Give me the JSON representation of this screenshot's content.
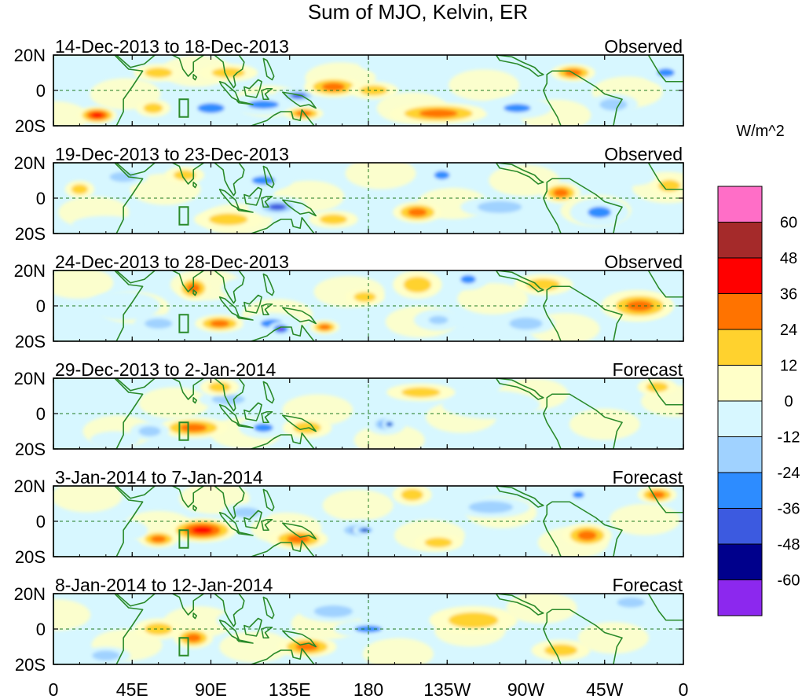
{
  "title": "Sum of MJO, Kelvin, ER",
  "colorbar": {
    "unit": "W/m^2",
    "labels": [
      "60",
      "48",
      "36",
      "24",
      "12",
      "0",
      "-12",
      "-24",
      "-36",
      "-48",
      "-60"
    ],
    "colors": [
      "#ff6ec7",
      "#a52a2a",
      "#ff0000",
      "#ff7300",
      "#ffd22e",
      "#ffffc8",
      "#d7f7ff",
      "#a0d2ff",
      "#2d8cff",
      "#3c5ae0",
      "#00008c",
      "#8c28ee"
    ]
  },
  "axes": {
    "lat_labels": [
      "20N",
      "0",
      "20S"
    ],
    "lon_labels": [
      "0",
      "45E",
      "90E",
      "135E",
      "180",
      "135W",
      "90W",
      "45W",
      "0"
    ]
  },
  "panels": [
    {
      "period": "14-Dec-2013 to 18-Dec-2013",
      "status": "Observed",
      "anomalies": [
        {
          "lon": 25,
          "lat": -14,
          "rlon": 8,
          "rlat": 5,
          "v": 40
        },
        {
          "lon": 57,
          "lat": -10,
          "rlon": 7,
          "rlat": 5,
          "v": 22
        },
        {
          "lon": 90,
          "lat": -10,
          "rlon": 14,
          "rlat": 7,
          "v": -30
        },
        {
          "lon": 120,
          "lat": -8,
          "rlon": 16,
          "rlat": 6,
          "v": -34
        },
        {
          "lon": 140,
          "lat": -3,
          "rlon": 10,
          "rlat": 5,
          "v": -40
        },
        {
          "lon": 160,
          "lat": 2,
          "rlon": 12,
          "rlat": 6,
          "v": 30
        },
        {
          "lon": 183,
          "lat": 0,
          "rlon": 10,
          "rlat": 5,
          "v": 22
        },
        {
          "lon": 143,
          "lat": -13,
          "rlon": 8,
          "rlat": 4,
          "v": 28
        },
        {
          "lon": 220,
          "lat": -13,
          "rlon": 20,
          "rlat": 6,
          "v": 30
        },
        {
          "lon": 265,
          "lat": -10,
          "rlon": 14,
          "rlat": 6,
          "v": -30
        },
        {
          "lon": 297,
          "lat": 10,
          "rlon": 9,
          "rlat": 5,
          "v": 26
        },
        {
          "lon": 350,
          "lat": 10,
          "rlon": 9,
          "rlat": 6,
          "v": -26
        },
        {
          "lon": 200,
          "lat": 15,
          "rlon": 18,
          "rlat": 6,
          "v": -12
        },
        {
          "lon": 60,
          "lat": 10,
          "rlon": 10,
          "rlat": 5,
          "v": 14
        },
        {
          "lon": 320,
          "lat": -8,
          "rlon": 10,
          "rlat": 6,
          "v": -14
        },
        {
          "lon": 100,
          "lat": 10,
          "rlon": 12,
          "rlat": 5,
          "v": 14
        }
      ]
    },
    {
      "period": "19-Dec-2013 to 23-Dec-2013",
      "status": "Observed",
      "anomalies": [
        {
          "lon": 15,
          "lat": 5,
          "rlon": 6,
          "rlat": 5,
          "v": 22
        },
        {
          "lon": 40,
          "lat": 12,
          "rlon": 10,
          "rlat": 5,
          "v": -14
        },
        {
          "lon": 75,
          "lat": 13,
          "rlon": 8,
          "rlat": 5,
          "v": 22
        },
        {
          "lon": 120,
          "lat": 10,
          "rlon": 12,
          "rlat": 6,
          "v": -32
        },
        {
          "lon": 128,
          "lat": -5,
          "rlon": 12,
          "rlat": 6,
          "v": -42
        },
        {
          "lon": 160,
          "lat": -12,
          "rlon": 10,
          "rlat": 5,
          "v": 18
        },
        {
          "lon": 208,
          "lat": -8,
          "rlon": 10,
          "rlat": 6,
          "v": 28
        },
        {
          "lon": 222,
          "lat": 13,
          "rlon": 8,
          "rlat": 6,
          "v": -28
        },
        {
          "lon": 290,
          "lat": 3,
          "rlon": 8,
          "rlat": 6,
          "v": 30
        },
        {
          "lon": 312,
          "lat": -8,
          "rlon": 12,
          "rlat": 8,
          "v": -34
        },
        {
          "lon": 352,
          "lat": 7,
          "rlon": 8,
          "rlat": 6,
          "v": 22
        },
        {
          "lon": 255,
          "lat": -5,
          "rlon": 16,
          "rlat": 6,
          "v": -14
        },
        {
          "lon": 30,
          "lat": -15,
          "rlon": 14,
          "rlat": 5,
          "v": -12
        },
        {
          "lon": 100,
          "lat": -12,
          "rlon": 14,
          "rlat": 6,
          "v": 12
        },
        {
          "lon": 330,
          "lat": 12,
          "rlon": 10,
          "rlat": 5,
          "v": -12
        }
      ]
    },
    {
      "period": "24-Dec-2013 to 28-Dec-2013",
      "status": "Observed",
      "anomalies": [
        {
          "lon": 80,
          "lat": 10,
          "rlon": 7,
          "rlat": 7,
          "v": 28
        },
        {
          "lon": 60,
          "lat": -10,
          "rlon": 10,
          "rlat": 5,
          "v": -22
        },
        {
          "lon": 95,
          "lat": -10,
          "rlon": 10,
          "rlat": 5,
          "v": 28
        },
        {
          "lon": 125,
          "lat": -10,
          "rlon": 12,
          "rlat": 6,
          "v": -35
        },
        {
          "lon": 130,
          "lat": -13,
          "rlon": 5,
          "rlat": 4,
          "v": -62
        },
        {
          "lon": 155,
          "lat": -12,
          "rlon": 6,
          "rlat": 4,
          "v": 28
        },
        {
          "lon": 178,
          "lat": 5,
          "rlon": 8,
          "rlat": 5,
          "v": 12
        },
        {
          "lon": 208,
          "lat": 12,
          "rlon": 10,
          "rlat": 8,
          "v": 22
        },
        {
          "lon": 237,
          "lat": 15,
          "rlon": 8,
          "rlat": 6,
          "v": -32
        },
        {
          "lon": 220,
          "lat": -8,
          "rlon": 10,
          "rlat": 6,
          "v": -24
        },
        {
          "lon": 280,
          "lat": 12,
          "rlon": 12,
          "rlat": 6,
          "v": 18
        },
        {
          "lon": 335,
          "lat": 0,
          "rlon": 14,
          "rlat": 8,
          "v": 30
        },
        {
          "lon": 270,
          "lat": -10,
          "rlon": 12,
          "rlat": 6,
          "v": -14
        },
        {
          "lon": 40,
          "lat": 0,
          "rlon": 15,
          "rlat": 8,
          "v": -12
        },
        {
          "lon": 110,
          "lat": 10,
          "rlon": 10,
          "rlat": 6,
          "v": -12
        }
      ]
    },
    {
      "period": "29-Dec-2013 to 2-Jan-2014",
      "status": "Forecast",
      "anomalies": [
        {
          "lon": 80,
          "lat": -8,
          "rlon": 14,
          "rlat": 6,
          "v": 30
        },
        {
          "lon": 55,
          "lat": -10,
          "rlon": 8,
          "rlat": 5,
          "v": -18
        },
        {
          "lon": 120,
          "lat": -8,
          "rlon": 10,
          "rlat": 6,
          "v": -30
        },
        {
          "lon": 145,
          "lat": -8,
          "rlon": 10,
          "rlat": 6,
          "v": 22
        },
        {
          "lon": 190,
          "lat": -6,
          "rlon": 8,
          "rlat": 6,
          "v": -36
        },
        {
          "lon": 192,
          "lat": -6,
          "rlon": 3,
          "rlat": 3,
          "v": -55
        },
        {
          "lon": 100,
          "lat": 8,
          "rlon": 12,
          "rlat": 5,
          "v": -14
        },
        {
          "lon": 95,
          "lat": 15,
          "rlon": 8,
          "rlat": 5,
          "v": 14
        },
        {
          "lon": 250,
          "lat": 5,
          "rlon": 20,
          "rlat": 8,
          "v": -12
        },
        {
          "lon": 345,
          "lat": 15,
          "rlon": 8,
          "rlat": 5,
          "v": 14
        },
        {
          "lon": 210,
          "lat": 12,
          "rlon": 14,
          "rlat": 5,
          "v": 12
        },
        {
          "lon": 35,
          "lat": -15,
          "rlon": 10,
          "rlat": 5,
          "v": -12
        }
      ]
    },
    {
      "period": "3-Jan-2014 to 7-Jan-2014",
      "status": "Forecast",
      "anomalies": [
        {
          "lon": 85,
          "lat": -5,
          "rlon": 14,
          "rlat": 7,
          "v": 38
        },
        {
          "lon": 60,
          "lat": -10,
          "rlon": 8,
          "rlat": 5,
          "v": 24
        },
        {
          "lon": 140,
          "lat": -10,
          "rlon": 12,
          "rlat": 6,
          "v": 26
        },
        {
          "lon": 175,
          "lat": -5,
          "rlon": 12,
          "rlat": 6,
          "v": -38
        },
        {
          "lon": 178,
          "lat": -5,
          "rlon": 5,
          "rlat": 3,
          "v": -55
        },
        {
          "lon": 110,
          "lat": 5,
          "rlon": 10,
          "rlat": 5,
          "v": -14
        },
        {
          "lon": 305,
          "lat": -8,
          "rlon": 10,
          "rlat": 7,
          "v": 30
        },
        {
          "lon": 300,
          "lat": 15,
          "rlon": 6,
          "rlat": 5,
          "v": -26
        },
        {
          "lon": 345,
          "lat": 15,
          "rlon": 8,
          "rlat": 5,
          "v": 24
        },
        {
          "lon": 205,
          "lat": 15,
          "rlon": 8,
          "rlat": 6,
          "v": 20
        },
        {
          "lon": 250,
          "lat": 8,
          "rlon": 16,
          "rlat": 6,
          "v": -14
        },
        {
          "lon": 220,
          "lat": -12,
          "rlon": 10,
          "rlat": 5,
          "v": 12
        },
        {
          "lon": 40,
          "lat": -5,
          "rlon": 10,
          "rlat": 6,
          "v": -12
        }
      ]
    },
    {
      "period": "8-Jan-2014 to 12-Jan-2014",
      "status": "Forecast",
      "anomalies": [
        {
          "lon": 80,
          "lat": -5,
          "rlon": 8,
          "rlat": 6,
          "v": 32
        },
        {
          "lon": 145,
          "lat": -10,
          "rlon": 12,
          "rlat": 6,
          "v": 28
        },
        {
          "lon": 180,
          "lat": 0,
          "rlon": 14,
          "rlat": 5,
          "v": -32
        },
        {
          "lon": 160,
          "lat": 10,
          "rlon": 14,
          "rlat": 6,
          "v": -14
        },
        {
          "lon": 110,
          "lat": 5,
          "rlon": 12,
          "rlat": 6,
          "v": -12
        },
        {
          "lon": 60,
          "lat": 0,
          "rlon": 10,
          "rlat": 6,
          "v": 14
        },
        {
          "lon": 290,
          "lat": -12,
          "rlon": 12,
          "rlat": 6,
          "v": 20
        },
        {
          "lon": 330,
          "lat": 15,
          "rlon": 10,
          "rlat": 5,
          "v": -14
        },
        {
          "lon": 240,
          "lat": 5,
          "rlon": 18,
          "rlat": 8,
          "v": 12
        },
        {
          "lon": 30,
          "lat": -15,
          "rlon": 10,
          "rlat": 5,
          "v": -14
        }
      ]
    }
  ]
}
